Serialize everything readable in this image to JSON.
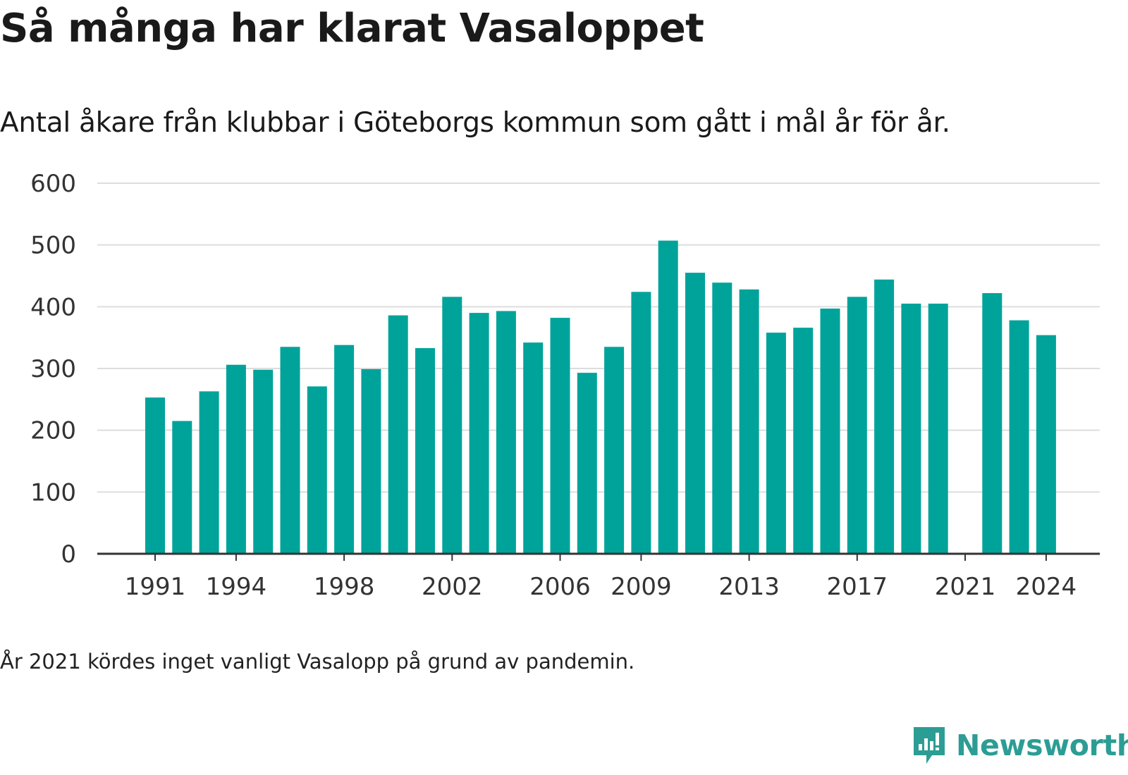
{
  "title": "Så många har klarat Vasaloppet",
  "subtitle": "Antal åkare från klubbar i Göteborgs kommun som gått i mål år för år.",
  "footnote": "År 2021 kördes inget vanligt Vasalopp på grund av pandemin.",
  "brand": {
    "name": "Newsworthy",
    "icon": "newsworthy-logo-icon",
    "color": "#2c9d94"
  },
  "colors": {
    "bar": "#00a39a",
    "grid": "#dddddd",
    "axis": "#333333",
    "text": "#333333"
  },
  "chart_data": {
    "type": "bar",
    "categories": [
      "1991",
      "1992",
      "1993",
      "1994",
      "1995",
      "1996",
      "1997",
      "1998",
      "1999",
      "2000",
      "2001",
      "2002",
      "2003",
      "2004",
      "2005",
      "2006",
      "2007",
      "2008",
      "2009",
      "2010",
      "2011",
      "2012",
      "2013",
      "2014",
      "2015",
      "2016",
      "2017",
      "2018",
      "2019",
      "2020",
      "2021",
      "2022",
      "2023",
      "2024"
    ],
    "values": [
      253,
      215,
      263,
      306,
      298,
      335,
      271,
      338,
      299,
      386,
      333,
      416,
      390,
      393,
      342,
      382,
      293,
      335,
      424,
      507,
      455,
      439,
      428,
      358,
      366,
      397,
      416,
      444,
      405,
      405,
      null,
      422,
      378,
      354
    ],
    "xticks": [
      "1991",
      "1994",
      "1998",
      "2002",
      "2006",
      "2009",
      "2013",
      "2017",
      "2021",
      "2024"
    ],
    "yticks": [
      0,
      100,
      200,
      300,
      400,
      500,
      600
    ],
    "ylim": [
      0,
      600
    ],
    "grid": true,
    "legend": "none"
  }
}
